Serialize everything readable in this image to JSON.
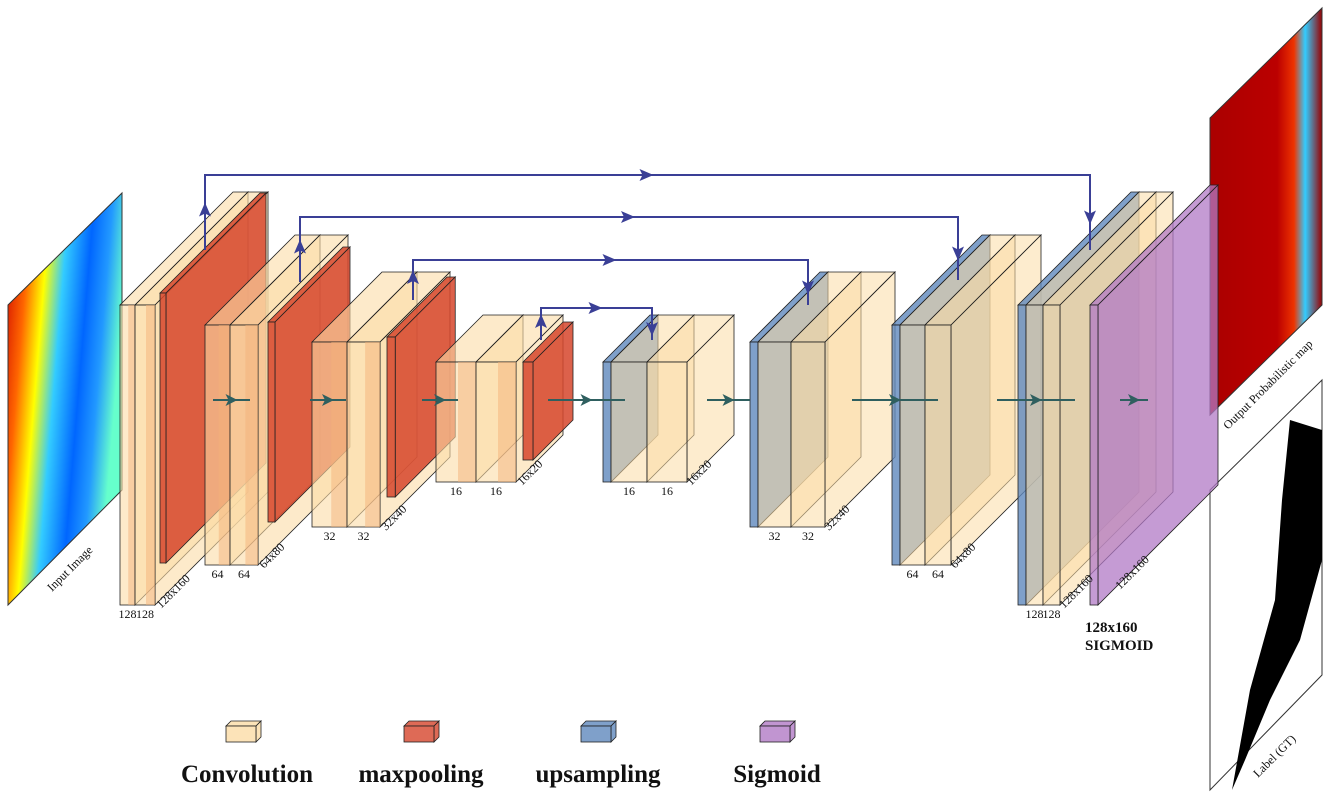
{
  "input_label": "Input Image",
  "encoder": [
    {
      "channels": [
        "128",
        "128"
      ],
      "size": "128x160"
    },
    {
      "channels": [
        "64",
        "64"
      ],
      "size": "64x80"
    },
    {
      "channels": [
        "32",
        "32"
      ],
      "size": "32x40"
    },
    {
      "channels": [
        "16",
        "16"
      ],
      "size": "16x20"
    }
  ],
  "decoder": [
    {
      "channels": [
        "16",
        "16"
      ],
      "size": "16x20"
    },
    {
      "channels": [
        "32",
        "32"
      ],
      "size": "32x40"
    },
    {
      "channels": [
        "64",
        "64"
      ],
      "size": "64x80"
    },
    {
      "channels": [
        "128",
        "128"
      ],
      "size": "128x160"
    }
  ],
  "sigmoid_size": "128x160",
  "output": {
    "size": "128x160",
    "activation": "SIGMOID"
  },
  "output_label": "Output Probabilistic map",
  "label_gt": "Label (GT)",
  "legend": [
    "Convolution",
    "maxpooling",
    "upsampling",
    "Sigmoid"
  ]
}
